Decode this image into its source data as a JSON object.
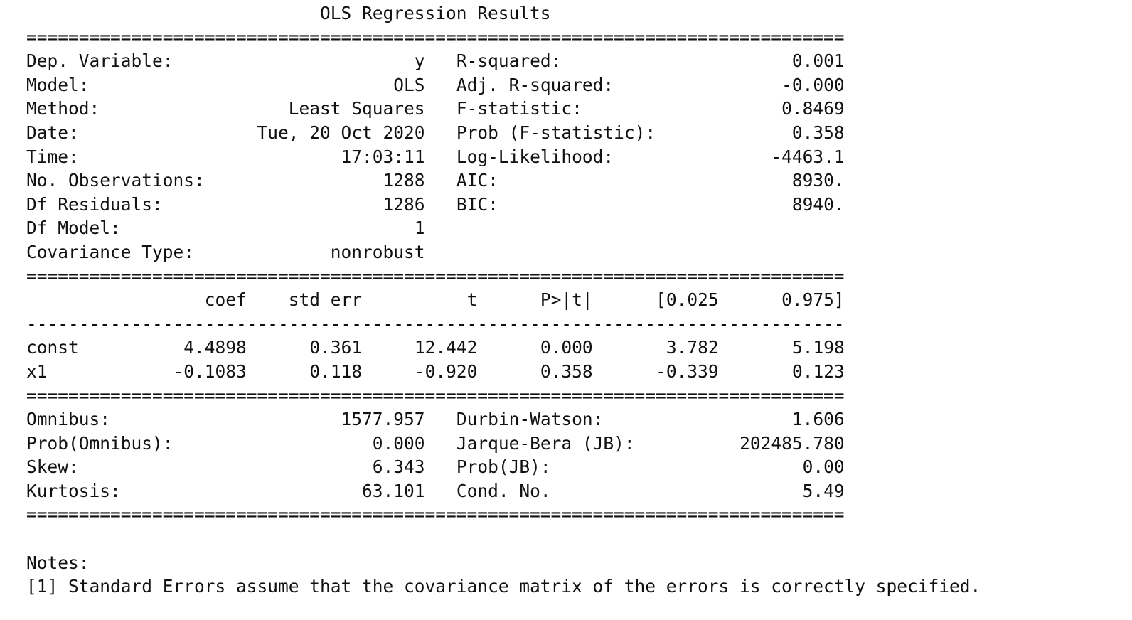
{
  "report": {
    "title": "OLS Regression Results",
    "rule_major": "==============================================================================",
    "rule_minor": "------------------------------------------------------------------------------",
    "model_info": [
      {
        "label": "Dep. Variable:",
        "value": "y",
        "stat_label": "R-squared:",
        "stat_value": "0.001"
      },
      {
        "label": "Model:",
        "value": "OLS",
        "stat_label": "Adj. R-squared:",
        "stat_value": "-0.000"
      },
      {
        "label": "Method:",
        "value": "Least Squares",
        "stat_label": "F-statistic:",
        "stat_value": "0.8469"
      },
      {
        "label": "Date:",
        "value": "Tue, 20 Oct 2020",
        "stat_label": "Prob (F-statistic):",
        "stat_value": "0.358"
      },
      {
        "label": "Time:",
        "value": "17:03:11",
        "stat_label": "Log-Likelihood:",
        "stat_value": "-4463.1"
      },
      {
        "label": "No. Observations:",
        "value": "1288",
        "stat_label": "AIC:",
        "stat_value": "8930."
      },
      {
        "label": "Df Residuals:",
        "value": "1286",
        "stat_label": "BIC:",
        "stat_value": "8940."
      },
      {
        "label": "Df Model:",
        "value": "1",
        "stat_label": "",
        "stat_value": ""
      },
      {
        "label": "Covariance Type:",
        "value": "nonrobust",
        "stat_label": "",
        "stat_value": ""
      }
    ],
    "coef_headers": [
      "coef",
      "std err",
      "t",
      "P>|t|",
      "[0.025",
      "0.975]"
    ],
    "coef_rows": [
      {
        "name": "const",
        "values": [
          "4.4898",
          "0.361",
          "12.442",
          "0.000",
          "3.782",
          "5.198"
        ]
      },
      {
        "name": "x1",
        "values": [
          "-0.1083",
          "0.118",
          "-0.920",
          "0.358",
          "-0.339",
          "0.123"
        ]
      }
    ],
    "diagnostics": [
      {
        "label": "Omnibus:",
        "value": "1577.957",
        "stat_label": "Durbin-Watson:",
        "stat_value": "1.606"
      },
      {
        "label": "Prob(Omnibus):",
        "value": "0.000",
        "stat_label": "Jarque-Bera (JB):",
        "stat_value": "202485.780"
      },
      {
        "label": "Skew:",
        "value": "6.343",
        "stat_label": "Prob(JB):",
        "stat_value": "0.00"
      },
      {
        "label": "Kurtosis:",
        "value": "63.101",
        "stat_label": "Cond. No.",
        "stat_value": "5.49"
      }
    ],
    "notes_title": "Notes:",
    "notes": [
      "[1] Standard Errors assume that the covariance matrix of the errors is correctly specified."
    ]
  }
}
